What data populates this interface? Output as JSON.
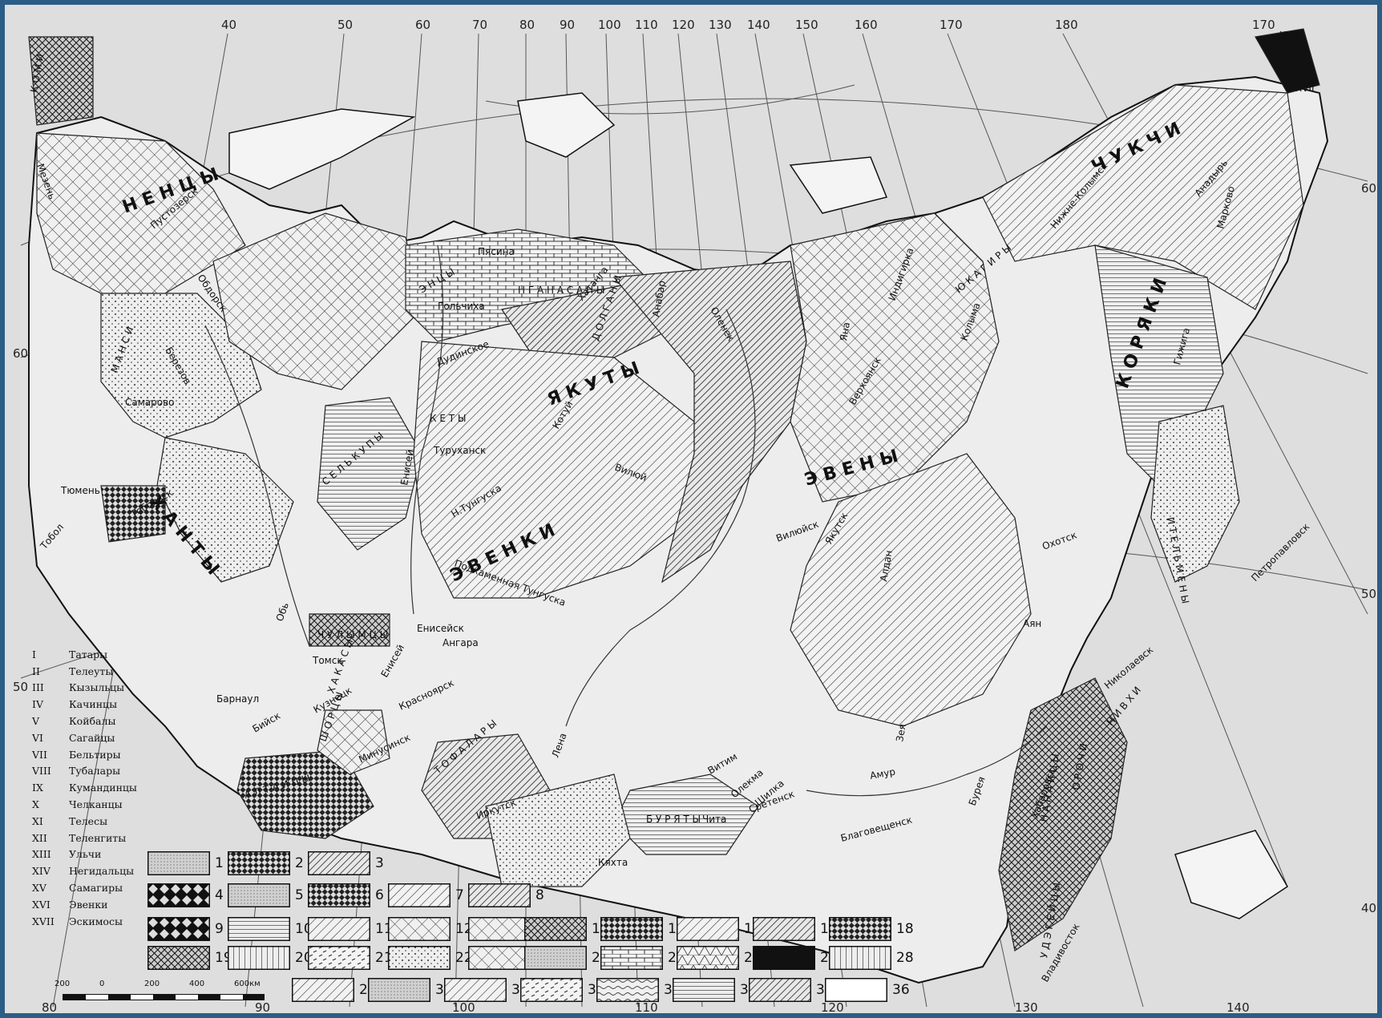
{
  "title": "",
  "meridians_top": [
    "40",
    "50",
    "60",
    "70",
    "80",
    "90",
    "100",
    "110",
    "120",
    "130",
    "140",
    "150",
    "160",
    "170",
    "180",
    "170"
  ],
  "meridians_bottom": [
    "80",
    "90",
    "100",
    "110",
    "120",
    "130",
    "140"
  ],
  "parallels_left": [
    "60",
    "50"
  ],
  "parallels_right": [
    "60",
    "50",
    "40"
  ],
  "xvii_marks": [
    "XVII",
    "XVII"
  ],
  "peoples": [
    "Н Е Н Ц Ы",
    "Я К У Т Ы",
    "Э В Е Н К И",
    "Э В Е Н Ы",
    "Ч У К Ч И",
    "К О Р Я К И",
    "Х А Н Т Ы",
    "С Е Л Ь К У П Ы",
    "Б У Р Я Т Ы",
    "Н А Н А Й Ц Ы",
    "Д О Л Г А Н Ы",
    "Н Г А Н А С А Н Ы",
    "К Е Т Ы",
    "Ч У Л Ы М Ц Ы",
    "Ш О Р Ц Ы",
    "А Л Т А Й Ц Ы",
    "Т О Ф А Л А Р Ы",
    "Н И В Х И",
    "О Р О Ч И",
    "У Д Э Г Е Й Ц Ы",
    "И Т Е Л Ь М Е Н Ы",
    "Ю К А Г И Р Ы",
    "Э Н Ц Ы",
    "М А Н С И",
    "К О М И",
    "Х А К А С Ы"
  ],
  "places": [
    "Мезень",
    "Пустозерск",
    "Обдорск",
    "Самарово",
    "Тюмень",
    "Тобольск",
    "Тобол",
    "Березов",
    "Гольчиха",
    "Пясина",
    "Хатанга",
    "Дудинское",
    "Туруханск",
    "Енисей",
    "Н.Тунгуска",
    "Подкаменная Тунгуска",
    "Енисейск",
    "Ангара",
    "Томск",
    "Обь",
    "Барнаул",
    "Бийск",
    "Кузнецк",
    "Красноярск",
    "Енисей",
    "Минусинск",
    "Иркутск",
    "Лена",
    "Кяхта",
    "Чита",
    "Сретенск",
    "Благовещенск",
    "Амур",
    "Хабаровск",
    "Владивосток",
    "Николаевск",
    "Аян",
    "Охотск",
    "Якутск",
    "Вилюйск",
    "Вилюй",
    "Верхоянск",
    "Колыма",
    "Нижне-Колымск",
    "Марково",
    "Гижига",
    "Петропавловск",
    "Анадырь",
    "Оленек",
    "Анабар",
    "Котуй",
    "Витим",
    "Олекма",
    "Шилка",
    "Зея",
    "Бурея",
    "Алдан",
    "Индигирка",
    "Яна"
  ],
  "legend_roman": [
    {
      "num": "I",
      "name": "Татары"
    },
    {
      "num": "II",
      "name": "Телеуты"
    },
    {
      "num": "III",
      "name": "Кызыльцы"
    },
    {
      "num": "IV",
      "name": "Качинцы"
    },
    {
      "num": "V",
      "name": "Койбалы"
    },
    {
      "num": "VI",
      "name": "Сагайцы"
    },
    {
      "num": "VII",
      "name": "Бельтиры"
    },
    {
      "num": "VIII",
      "name": "Тубалары"
    },
    {
      "num": "IX",
      "name": "Кумандинцы"
    },
    {
      "num": "X",
      "name": "Челканцы"
    },
    {
      "num": "XI",
      "name": "Телесы"
    },
    {
      "num": "XII",
      "name": "Теленгиты"
    },
    {
      "num": "XIII",
      "name": "Ульчи"
    },
    {
      "num": "XIV",
      "name": "Негидальцы"
    },
    {
      "num": "XV",
      "name": "Самагиры"
    },
    {
      "num": "XVI",
      "name": "Эвенки"
    },
    {
      "num": "XVII",
      "name": "Эскимосы"
    }
  ],
  "legend_key": [
    "1",
    "2",
    "3",
    "4",
    "5",
    "6",
    "7",
    "8",
    "9",
    "10",
    "11",
    "12",
    "13",
    "14",
    "15",
    "16",
    "17",
    "18",
    "19",
    "20",
    "21",
    "22",
    "23",
    "24",
    "25",
    "26",
    "27",
    "28",
    "29",
    "30",
    "31",
    "32",
    "33",
    "34",
    "35",
    "36"
  ],
  "scale": {
    "labels": [
      "200",
      "0",
      "200",
      "400",
      "600км"
    ]
  }
}
